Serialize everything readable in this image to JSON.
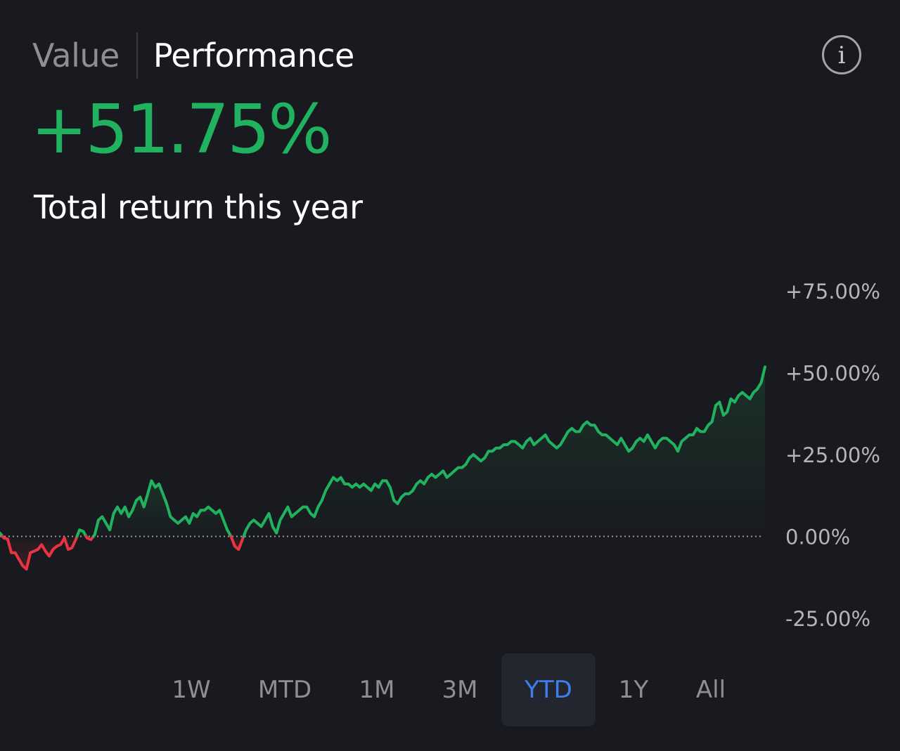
{
  "tabs": {
    "value_label": "Value",
    "performance_label": "Performance",
    "active": "performance"
  },
  "info_icon": {
    "glyph": "i",
    "icon": "info-icon"
  },
  "headline": {
    "return_value": "+51.75%",
    "caption": "Total return this year"
  },
  "colors": {
    "positive": "#21b25f",
    "negative": "#e8343f",
    "background": "#191a1f",
    "accent": "#3d7ff0",
    "muted_text": "#8e8e94"
  },
  "time_ranges": {
    "items": [
      "1W",
      "MTD",
      "1M",
      "3M",
      "YTD",
      "1Y",
      "All"
    ],
    "selected": "YTD"
  },
  "chart_data": {
    "type": "line",
    "title": "",
    "xlabel": "",
    "ylabel": "",
    "ylim": [
      -25,
      75
    ],
    "y_ticks": [
      "+75.00%",
      "+50.00%",
      "+25.00%",
      "0.00%",
      "-25.00%"
    ],
    "y_tick_values": [
      75,
      50,
      25,
      0,
      -25
    ],
    "baseline": 0,
    "grid": false,
    "series": [
      {
        "values": [
          1,
          -0.5,
          -0.8,
          -5,
          -5,
          -7,
          -9,
          -10,
          -5,
          -4.5,
          -4,
          -2.5,
          -4.5,
          -6,
          -4,
          -3,
          -2.5,
          -0.5,
          -4,
          -3.5,
          -1,
          2,
          1.5,
          -0.5,
          -1,
          0.5,
          5,
          6,
          4,
          2,
          7,
          9,
          7,
          9,
          6,
          8,
          11,
          12,
          9,
          13,
          17,
          15,
          16,
          13,
          10,
          6,
          5,
          4,
          5,
          6,
          4,
          7,
          6,
          8,
          8,
          9,
          8,
          7,
          8,
          5,
          2,
          0,
          -3,
          -4,
          -1,
          2,
          4,
          5,
          4,
          3,
          5,
          7,
          3,
          1,
          5,
          7,
          9,
          6,
          7,
          8,
          9,
          9,
          7,
          6,
          9,
          11,
          14,
          16,
          18,
          17,
          18,
          16,
          16,
          15,
          16,
          15,
          16,
          15,
          14,
          16,
          15,
          17,
          17,
          15,
          11,
          10,
          12,
          13,
          13,
          14,
          16,
          17,
          16,
          18,
          19,
          18,
          19,
          20,
          18,
          19,
          20,
          21,
          21,
          22,
          24,
          25,
          24,
          23,
          24,
          26,
          26,
          27,
          27,
          28,
          28,
          29,
          29,
          28,
          27,
          29,
          30,
          28,
          29,
          30,
          31,
          29,
          28,
          27,
          28,
          30,
          32,
          33,
          32,
          32,
          34,
          35,
          34,
          34,
          32,
          31,
          31,
          30,
          29,
          28,
          30,
          28,
          26,
          27,
          29,
          30,
          29,
          31,
          29,
          27,
          29,
          30,
          30,
          29,
          28,
          26,
          29,
          30,
          31,
          31,
          33,
          32,
          32,
          34,
          35,
          40,
          41,
          37,
          38,
          42,
          41,
          43,
          44,
          43,
          42,
          44,
          45,
          47,
          51.75
        ]
      }
    ]
  }
}
